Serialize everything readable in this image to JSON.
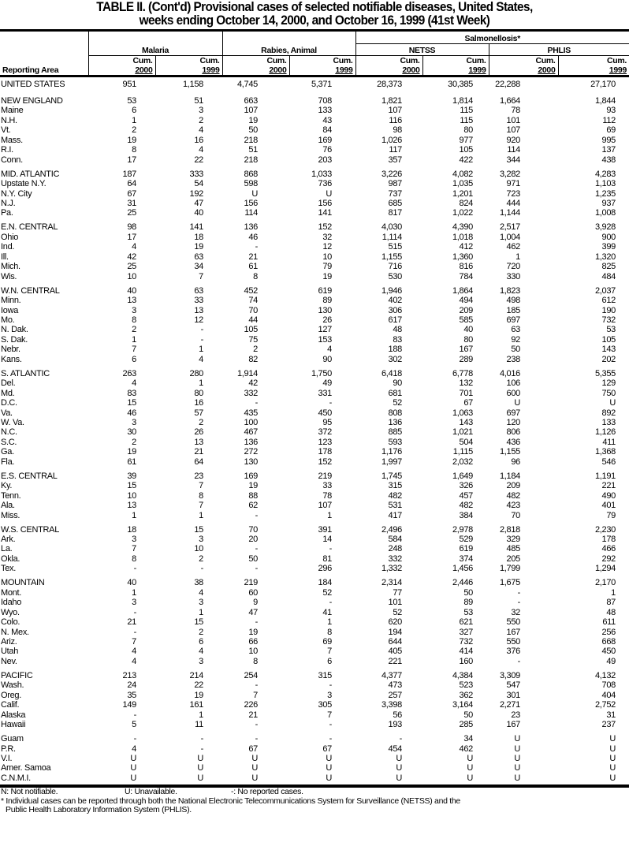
{
  "title_line1": "TABLE II. (Cont'd) Provisional cases of selected notifiable diseases, United States,",
  "title_line2": "weeks ending October 14, 2000, and October 16, 1999 (41st Week)",
  "header": {
    "reporting_area": "Reporting Area",
    "malaria": "Malaria",
    "rabies": "Rabies, Animal",
    "salmonellosis": "Salmonellosis*",
    "netss": "NETSS",
    "phlis": "PHLIS",
    "cum": "Cum.",
    "y2000": "2000",
    "y1999": "1999"
  },
  "groups": [
    [
      [
        "UNITED STATES",
        "951",
        "1,158",
        "4,745",
        "5,371",
        "28,373",
        "30,385",
        "22,288",
        "27,170"
      ]
    ],
    [
      [
        "NEW ENGLAND",
        "53",
        "51",
        "663",
        "708",
        "1,821",
        "1,814",
        "1,664",
        "1,844"
      ],
      [
        "Maine",
        "6",
        "3",
        "107",
        "133",
        "107",
        "115",
        "78",
        "93"
      ],
      [
        "N.H.",
        "1",
        "2",
        "19",
        "43",
        "116",
        "115",
        "101",
        "112"
      ],
      [
        "Vt.",
        "2",
        "4",
        "50",
        "84",
        "98",
        "80",
        "107",
        "69"
      ],
      [
        "Mass.",
        "19",
        "16",
        "218",
        "169",
        "1,026",
        "977",
        "920",
        "995"
      ],
      [
        "R.I.",
        "8",
        "4",
        "51",
        "76",
        "117",
        "105",
        "114",
        "137"
      ],
      [
        "Conn.",
        "17",
        "22",
        "218",
        "203",
        "357",
        "422",
        "344",
        "438"
      ]
    ],
    [
      [
        "MID. ATLANTIC",
        "187",
        "333",
        "868",
        "1,033",
        "3,226",
        "4,082",
        "3,282",
        "4,283"
      ],
      [
        "Upstate N.Y.",
        "64",
        "54",
        "598",
        "736",
        "987",
        "1,035",
        "971",
        "1,103"
      ],
      [
        "N.Y. City",
        "67",
        "192",
        "U",
        "U",
        "737",
        "1,201",
        "723",
        "1,235"
      ],
      [
        "N.J.",
        "31",
        "47",
        "156",
        "156",
        "685",
        "824",
        "444",
        "937"
      ],
      [
        "Pa.",
        "25",
        "40",
        "114",
        "141",
        "817",
        "1,022",
        "1,144",
        "1,008"
      ]
    ],
    [
      [
        "E.N. CENTRAL",
        "98",
        "141",
        "136",
        "152",
        "4,030",
        "4,390",
        "2,517",
        "3,928"
      ],
      [
        "Ohio",
        "17",
        "18",
        "46",
        "32",
        "1,114",
        "1,018",
        "1,004",
        "900"
      ],
      [
        "Ind.",
        "4",
        "19",
        "-",
        "12",
        "515",
        "412",
        "462",
        "399"
      ],
      [
        "Ill.",
        "42",
        "63",
        "21",
        "10",
        "1,155",
        "1,360",
        "1",
        "1,320"
      ],
      [
        "Mich.",
        "25",
        "34",
        "61",
        "79",
        "716",
        "816",
        "720",
        "825"
      ],
      [
        "Wis.",
        "10",
        "7",
        "8",
        "19",
        "530",
        "784",
        "330",
        "484"
      ]
    ],
    [
      [
        "W.N. CENTRAL",
        "40",
        "63",
        "452",
        "619",
        "1,946",
        "1,864",
        "1,823",
        "2,037"
      ],
      [
        "Minn.",
        "13",
        "33",
        "74",
        "89",
        "402",
        "494",
        "498",
        "612"
      ],
      [
        "Iowa",
        "3",
        "13",
        "70",
        "130",
        "306",
        "209",
        "185",
        "190"
      ],
      [
        "Mo.",
        "8",
        "12",
        "44",
        "26",
        "617",
        "585",
        "697",
        "732"
      ],
      [
        "N. Dak.",
        "2",
        "-",
        "105",
        "127",
        "48",
        "40",
        "63",
        "53"
      ],
      [
        "S. Dak.",
        "1",
        "-",
        "75",
        "153",
        "83",
        "80",
        "92",
        "105"
      ],
      [
        "Nebr.",
        "7",
        "1",
        "2",
        "4",
        "188",
        "167",
        "50",
        "143"
      ],
      [
        "Kans.",
        "6",
        "4",
        "82",
        "90",
        "302",
        "289",
        "238",
        "202"
      ]
    ],
    [
      [
        "S. ATLANTIC",
        "263",
        "280",
        "1,914",
        "1,750",
        "6,418",
        "6,778",
        "4,016",
        "5,355"
      ],
      [
        "Del.",
        "4",
        "1",
        "42",
        "49",
        "90",
        "132",
        "106",
        "129"
      ],
      [
        "Md.",
        "83",
        "80",
        "332",
        "331",
        "681",
        "701",
        "600",
        "750"
      ],
      [
        "D.C.",
        "15",
        "16",
        "-",
        "-",
        "52",
        "67",
        "U",
        "U"
      ],
      [
        "Va.",
        "46",
        "57",
        "435",
        "450",
        "808",
        "1,063",
        "697",
        "892"
      ],
      [
        "W. Va.",
        "3",
        "2",
        "100",
        "95",
        "136",
        "143",
        "120",
        "133"
      ],
      [
        "N.C.",
        "30",
        "26",
        "467",
        "372",
        "885",
        "1,021",
        "806",
        "1,126"
      ],
      [
        "S.C.",
        "2",
        "13",
        "136",
        "123",
        "593",
        "504",
        "436",
        "411"
      ],
      [
        "Ga.",
        "19",
        "21",
        "272",
        "178",
        "1,176",
        "1,115",
        "1,155",
        "1,368"
      ],
      [
        "Fla.",
        "61",
        "64",
        "130",
        "152",
        "1,997",
        "2,032",
        "96",
        "546"
      ]
    ],
    [
      [
        "E.S. CENTRAL",
        "39",
        "23",
        "169",
        "219",
        "1,745",
        "1,649",
        "1,184",
        "1,191"
      ],
      [
        "Ky.",
        "15",
        "7",
        "19",
        "33",
        "315",
        "326",
        "209",
        "221"
      ],
      [
        "Tenn.",
        "10",
        "8",
        "88",
        "78",
        "482",
        "457",
        "482",
        "490"
      ],
      [
        "Ala.",
        "13",
        "7",
        "62",
        "107",
        "531",
        "482",
        "423",
        "401"
      ],
      [
        "Miss.",
        "1",
        "1",
        "-",
        "1",
        "417",
        "384",
        "70",
        "79"
      ]
    ],
    [
      [
        "W.S. CENTRAL",
        "18",
        "15",
        "70",
        "391",
        "2,496",
        "2,978",
        "2,818",
        "2,230"
      ],
      [
        "Ark.",
        "3",
        "3",
        "20",
        "14",
        "584",
        "529",
        "329",
        "178"
      ],
      [
        "La.",
        "7",
        "10",
        "-",
        "-",
        "248",
        "619",
        "485",
        "466"
      ],
      [
        "Okla.",
        "8",
        "2",
        "50",
        "81",
        "332",
        "374",
        "205",
        "292"
      ],
      [
        "Tex.",
        "-",
        "-",
        "-",
        "296",
        "1,332",
        "1,456",
        "1,799",
        "1,294"
      ]
    ],
    [
      [
        "MOUNTAIN",
        "40",
        "38",
        "219",
        "184",
        "2,314",
        "2,446",
        "1,675",
        "2,170"
      ],
      [
        "Mont.",
        "1",
        "4",
        "60",
        "52",
        "77",
        "50",
        "-",
        "1"
      ],
      [
        "Idaho",
        "3",
        "3",
        "9",
        "-",
        "101",
        "89",
        "-",
        "87"
      ],
      [
        "Wyo.",
        "-",
        "1",
        "47",
        "41",
        "52",
        "53",
        "32",
        "48"
      ],
      [
        "Colo.",
        "21",
        "15",
        "-",
        "1",
        "620",
        "621",
        "550",
        "611"
      ],
      [
        "N. Mex.",
        "-",
        "2",
        "19",
        "8",
        "194",
        "327",
        "167",
        "256"
      ],
      [
        "Ariz.",
        "7",
        "6",
        "66",
        "69",
        "644",
        "732",
        "550",
        "668"
      ],
      [
        "Utah",
        "4",
        "4",
        "10",
        "7",
        "405",
        "414",
        "376",
        "450"
      ],
      [
        "Nev.",
        "4",
        "3",
        "8",
        "6",
        "221",
        "160",
        "-",
        "49"
      ]
    ],
    [
      [
        "PACIFIC",
        "213",
        "214",
        "254",
        "315",
        "4,377",
        "4,384",
        "3,309",
        "4,132"
      ],
      [
        "Wash.",
        "24",
        "22",
        "-",
        "-",
        "473",
        "523",
        "547",
        "708"
      ],
      [
        "Oreg.",
        "35",
        "19",
        "7",
        "3",
        "257",
        "362",
        "301",
        "404"
      ],
      [
        "Calif.",
        "149",
        "161",
        "226",
        "305",
        "3,398",
        "3,164",
        "2,271",
        "2,752"
      ],
      [
        "Alaska",
        "-",
        "1",
        "21",
        "7",
        "56",
        "50",
        "23",
        "31"
      ],
      [
        "Hawaii",
        "5",
        "11",
        "-",
        "-",
        "193",
        "285",
        "167",
        "237"
      ]
    ],
    [
      [
        "Guam",
        "-",
        "-",
        "-",
        "-",
        "-",
        "34",
        "U",
        "U"
      ],
      [
        "P.R.",
        "4",
        "-",
        "67",
        "67",
        "454",
        "462",
        "U",
        "U"
      ],
      [
        "V.I.",
        "U",
        "U",
        "U",
        "U",
        "U",
        "U",
        "U",
        "U"
      ],
      [
        "Amer. Samoa",
        "U",
        "U",
        "U",
        "U",
        "U",
        "U",
        "U",
        "U"
      ],
      [
        "C.N.M.I.",
        "U",
        "U",
        "U",
        "U",
        "U",
        "U",
        "U",
        "U"
      ]
    ]
  ],
  "footer": {
    "n_note": "N: Not notifiable.",
    "u_note": "U: Unavailable.",
    "dash_note": "-: No reported cases.",
    "footnote_line1": "* Individual cases can be reported through both the National Electronic Telecommunications System for Surveillance (NETSS) and the",
    "footnote_line2": "Public Health Laboratory Information System (PHLIS)."
  }
}
